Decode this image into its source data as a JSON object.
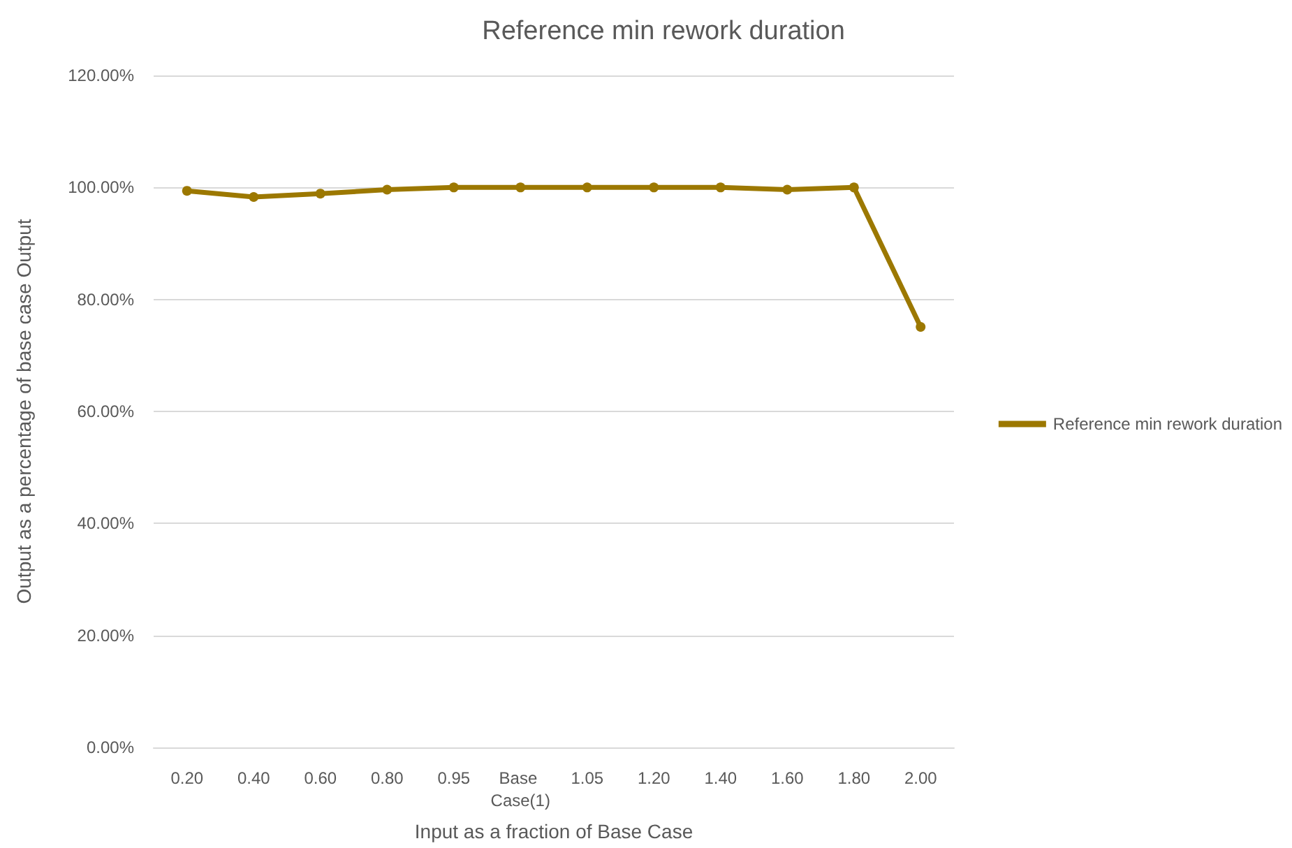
{
  "chart_data": {
    "type": "line",
    "title": "Reference min rework duration",
    "xlabel": "Input as a fraction of Base Case",
    "ylabel": "Output as a percentage of base case Output",
    "categories": [
      "0.20",
      "0.40",
      "0.60",
      "0.80",
      "0.95",
      "Base Case(1)",
      "1.05",
      "1.20",
      "1.40",
      "1.60",
      "1.80",
      "2.00"
    ],
    "series": [
      {
        "name": "Reference min rework duration",
        "color": "#9c7800",
        "values": [
          99.4,
          98.3,
          98.9,
          99.6,
          100,
          100,
          100,
          100,
          100,
          99.6,
          100,
          75.1
        ]
      }
    ],
    "ylim": [
      0,
      120
    ],
    "yticks": [
      {
        "value": 0,
        "label": "0.00%"
      },
      {
        "value": 20,
        "label": "20.00%"
      },
      {
        "value": 40,
        "label": "40.00%"
      },
      {
        "value": 60,
        "label": "60.00%"
      },
      {
        "value": 80,
        "label": "80.00%"
      },
      {
        "value": 100,
        "label": "100.00%"
      },
      {
        "value": 120,
        "label": "120.00%"
      }
    ],
    "grid": "y",
    "legend": "right",
    "marker": "circle",
    "line_style": "solid"
  }
}
